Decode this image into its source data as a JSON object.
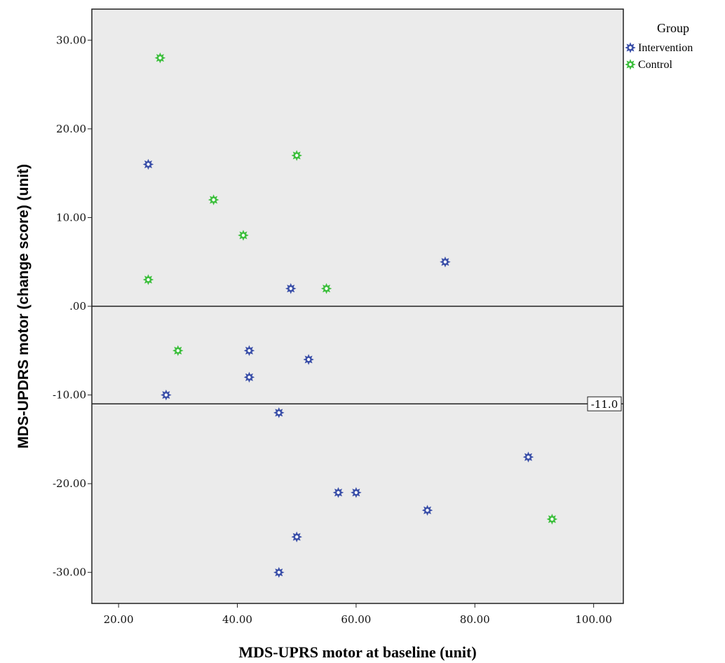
{
  "chart_data": {
    "type": "scatter",
    "xlabel": "MDS-UPRS motor at baseline (unit)",
    "ylabel": "MDS-UPDRS motor (change score) (unit)",
    "xlim": [
      15.5,
      105
    ],
    "ylim": [
      -33.5,
      33.5
    ],
    "x_ticks": [
      20,
      40,
      60,
      80,
      100
    ],
    "x_tick_labels": [
      "20.00",
      "40.00",
      "60.00",
      "80.00",
      "100.00"
    ],
    "y_ticks": [
      30,
      20,
      10,
      0,
      -10,
      -20,
      -30
    ],
    "y_tick_labels": [
      "30.00",
      "20.00",
      "10.00",
      ".00",
      "-10.00",
      "-20.00",
      "-30.00"
    ],
    "grid": false,
    "plot_background": "#ebebeb",
    "legend": {
      "title": "Group",
      "placement": "top-right outside"
    },
    "reference_lines": [
      {
        "y": 0,
        "label": ""
      },
      {
        "y": -11,
        "label": "-11.0"
      }
    ],
    "series": [
      {
        "name": "Intervention",
        "color": "#3a4fa8",
        "marker": "asterisk-star",
        "points": [
          {
            "x": 25,
            "y": 16
          },
          {
            "x": 49,
            "y": 2
          },
          {
            "x": 75,
            "y": 5
          },
          {
            "x": 42,
            "y": -5
          },
          {
            "x": 52,
            "y": -6
          },
          {
            "x": 42,
            "y": -8
          },
          {
            "x": 28,
            "y": -10
          },
          {
            "x": 47,
            "y": -12
          },
          {
            "x": 89,
            "y": -17
          },
          {
            "x": 57,
            "y": -21
          },
          {
            "x": 60,
            "y": -21
          },
          {
            "x": 72,
            "y": -23
          },
          {
            "x": 50,
            "y": -26
          },
          {
            "x": 47,
            "y": -30
          }
        ]
      },
      {
        "name": "Control",
        "color": "#3dbf3d",
        "marker": "asterisk-star",
        "points": [
          {
            "x": 27,
            "y": 28
          },
          {
            "x": 50,
            "y": 17
          },
          {
            "x": 36,
            "y": 12
          },
          {
            "x": 41,
            "y": 8
          },
          {
            "x": 25,
            "y": 3
          },
          {
            "x": 55,
            "y": 2
          },
          {
            "x": 30,
            "y": -5
          },
          {
            "x": 93,
            "y": -24
          }
        ]
      }
    ]
  }
}
